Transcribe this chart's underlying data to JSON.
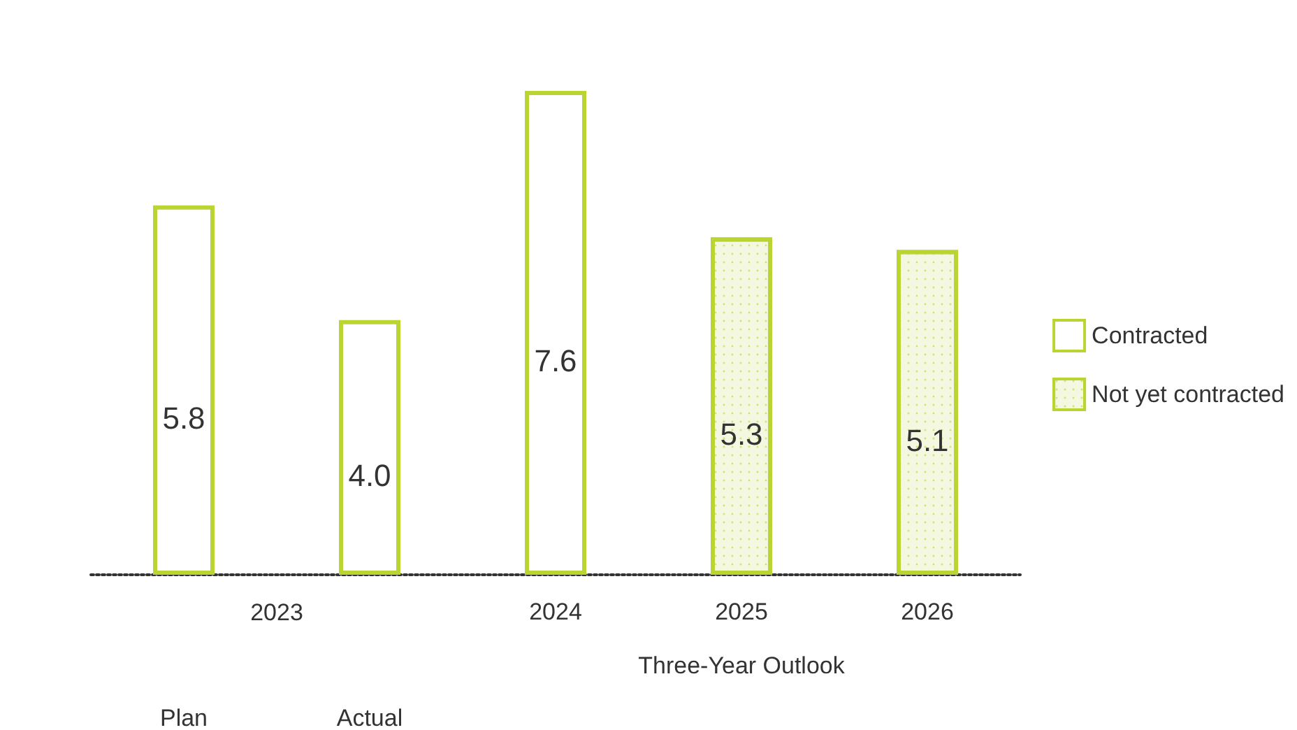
{
  "chart_data": {
    "type": "bar",
    "categories": [
      "Plan",
      "Actual",
      "2024",
      "2025",
      "2026"
    ],
    "series": [
      {
        "name": "Contracted",
        "color": "#bad532",
        "values": [
          5.8,
          4.0,
          7.6,
          null,
          null
        ],
        "value_labels": [
          "5.8",
          "4.0",
          "7.6",
          null,
          null
        ]
      },
      {
        "name": "Not yet contracted",
        "color": "#bad532",
        "values": [
          null,
          null,
          null,
          5.3,
          5.1
        ],
        "value_labels": [
          null,
          null,
          null,
          "5.3",
          "5.1"
        ]
      }
    ],
    "stacked": true,
    "legend": "right",
    "grid": false,
    "annotations": [
      "2023",
      "Three-Year Outlook"
    ]
  }
}
